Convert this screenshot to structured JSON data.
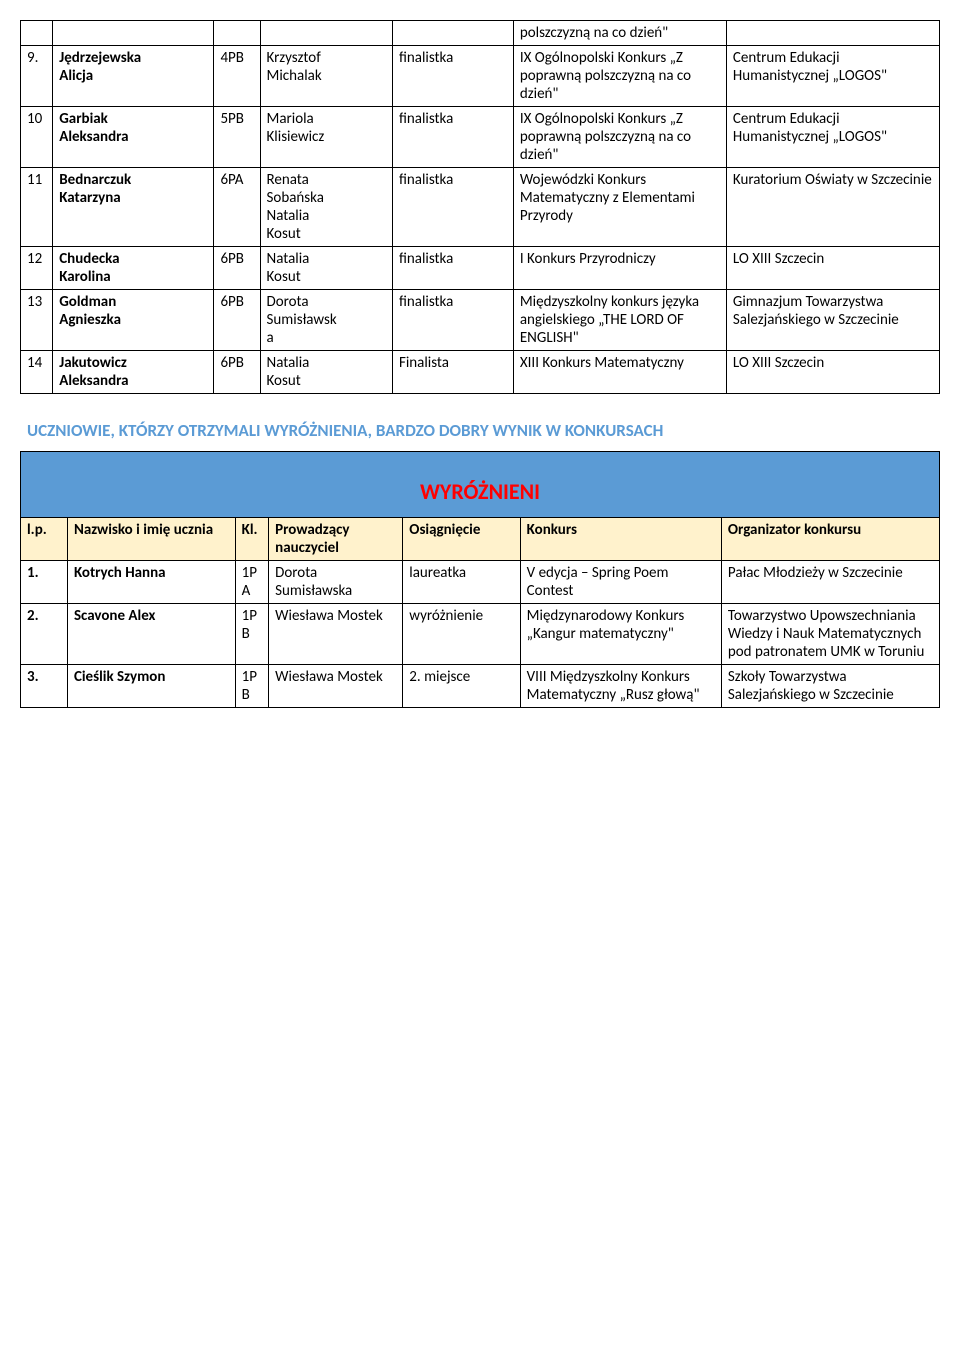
{
  "table1": {
    "rows": [
      {
        "lp": "",
        "name_lines": [],
        "kl": "",
        "prow_lines": [],
        "os": "",
        "konk": "polszczyzną na co dzień\"",
        "org": ""
      },
      {
        "lp": "9.",
        "name_lines": [
          "Jędrzejewska",
          "Alicja"
        ],
        "kl": "4PB",
        "prow_lines": [
          "Krzysztof",
          "Michalak"
        ],
        "os": "finalistka",
        "konk": "IX Ogólnopolski Konkurs „Z poprawną polszczyzną na co dzień\"",
        "org": "Centrum Edukacji Humanistycznej „LOGOS\""
      },
      {
        "lp": "10",
        "name_lines": [
          "Garbiak",
          "Aleksandra"
        ],
        "kl": "5PB",
        "prow_lines": [
          "Mariola",
          "Klisiewicz"
        ],
        "os": "finalistka",
        "konk": "IX Ogólnopolski Konkurs „Z poprawną polszczyzną na co dzień\"",
        "org": "Centrum Edukacji Humanistycznej „LOGOS\""
      },
      {
        "lp": "11",
        "name_lines": [
          "Bednarczuk",
          "Katarzyna"
        ],
        "kl": "6PA",
        "prow_lines": [
          "Renata",
          "Sobańska",
          "Natalia",
          "Kosut"
        ],
        "os": "finalistka",
        "konk": "Wojewódzki Konkurs Matematyczny z Elementami Przyrody",
        "org": "Kuratorium Oświaty w Szczecinie"
      },
      {
        "lp": "12",
        "name_lines": [
          "Chudecka",
          "Karolina"
        ],
        "kl": "6PB",
        "prow_lines": [
          "Natalia",
          "Kosut"
        ],
        "os": "finalistka",
        "konk": "I Konkurs Przyrodniczy",
        "org": "LO XIII Szczecin"
      },
      {
        "lp": "13",
        "name_lines": [
          "Goldman",
          "Agnieszka"
        ],
        "kl": "6PB",
        "prow_lines": [
          "Dorota",
          "Sumisławsk",
          "a"
        ],
        "os": "finalistka",
        "konk": "Międzyszkolny konkurs języka angielskiego „THE LORD OF ENGLISH\"",
        "org": "Gimnazjum Towarzystwa Salezjańskiego w Szczecinie"
      },
      {
        "lp": "14",
        "name_lines": [
          "Jakutowicz",
          "Aleksandra"
        ],
        "kl": "6PB",
        "prow_lines": [
          "Natalia",
          "Kosut"
        ],
        "os": "Finalista",
        "konk": "XIII Konkurs Matematyczny",
        "org": "LO XIII Szczecin"
      }
    ]
  },
  "section_heading": "UCZNIOWIE, KTÓRZY OTRZYMALI WYRÓŻNIENIA, BARDZO DOBRY WYNIK W KONKURSACH",
  "banner": "WYRÓŻNIENI",
  "table2": {
    "headers": {
      "lp": "l.p.",
      "name": "Nazwisko i imię ucznia",
      "kl": "Kl.",
      "prow": "Prowadzący nauczyciel",
      "os": "Osiągnięcie",
      "konk": "Konkurs",
      "org": "Organizator konkursu"
    },
    "rows": [
      {
        "lp": "1.",
        "name": "Kotrych Hanna",
        "kl": "1P A",
        "prow": "Dorota Sumisławska",
        "os": "laureatka",
        "konk": "V edycja – Spring Poem Contest",
        "org": "Pałac Młodzieży w Szczecinie"
      },
      {
        "lp": "2.",
        "name": "Scavone Alex",
        "kl": "1P B",
        "prow": "Wiesława Mostek",
        "os": "wyróżnienie",
        "konk": "Międzynarodowy Konkurs „Kangur matematyczny\"",
        "org": "Towarzystwo Upowszechniania Wiedzy i Nauk Matematycznych pod patronatem UMK w Toruniu"
      },
      {
        "lp": "3.",
        "name": "Cieślik Szymon",
        "kl": "1P B",
        "prow": "Wiesława Mostek",
        "os": "2. miejsce",
        "konk": "VIII Międzyszkolny Konkurs Matematyczny „Rusz głową\"",
        "org": "Szkoły Towarzystwa Salezjańskiego w Szczecinie"
      }
    ]
  },
  "colors": {
    "banner_bg": "#5b9bd5",
    "banner_text": "#ff0000",
    "header_bg": "#fff2cc",
    "heading_text": "#5b9bd5"
  }
}
